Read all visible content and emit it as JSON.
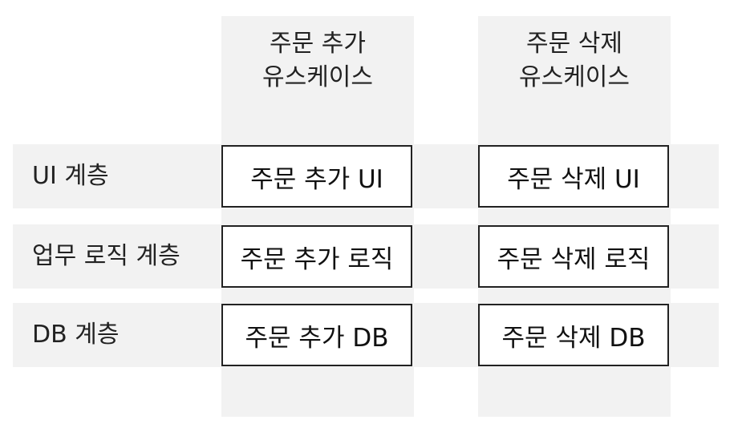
{
  "columns": [
    {
      "header": "주문 추가\n유스케이스"
    },
    {
      "header": "주문 삭제\n유스케이스"
    }
  ],
  "rows": [
    {
      "label": "UI 계층"
    },
    {
      "label": "업무 로직 계층"
    },
    {
      "label": "DB 계층"
    }
  ],
  "cells": [
    [
      "주문 추가 UI",
      "주문 삭제 UI"
    ],
    [
      "주문 추가 로직",
      "주문 삭제 로직"
    ],
    [
      "주문 추가 DB",
      "주문 삭제 DB"
    ]
  ],
  "colors": {
    "band": "#f2f2f2",
    "border": "#222222",
    "cell_bg": "#ffffff"
  }
}
